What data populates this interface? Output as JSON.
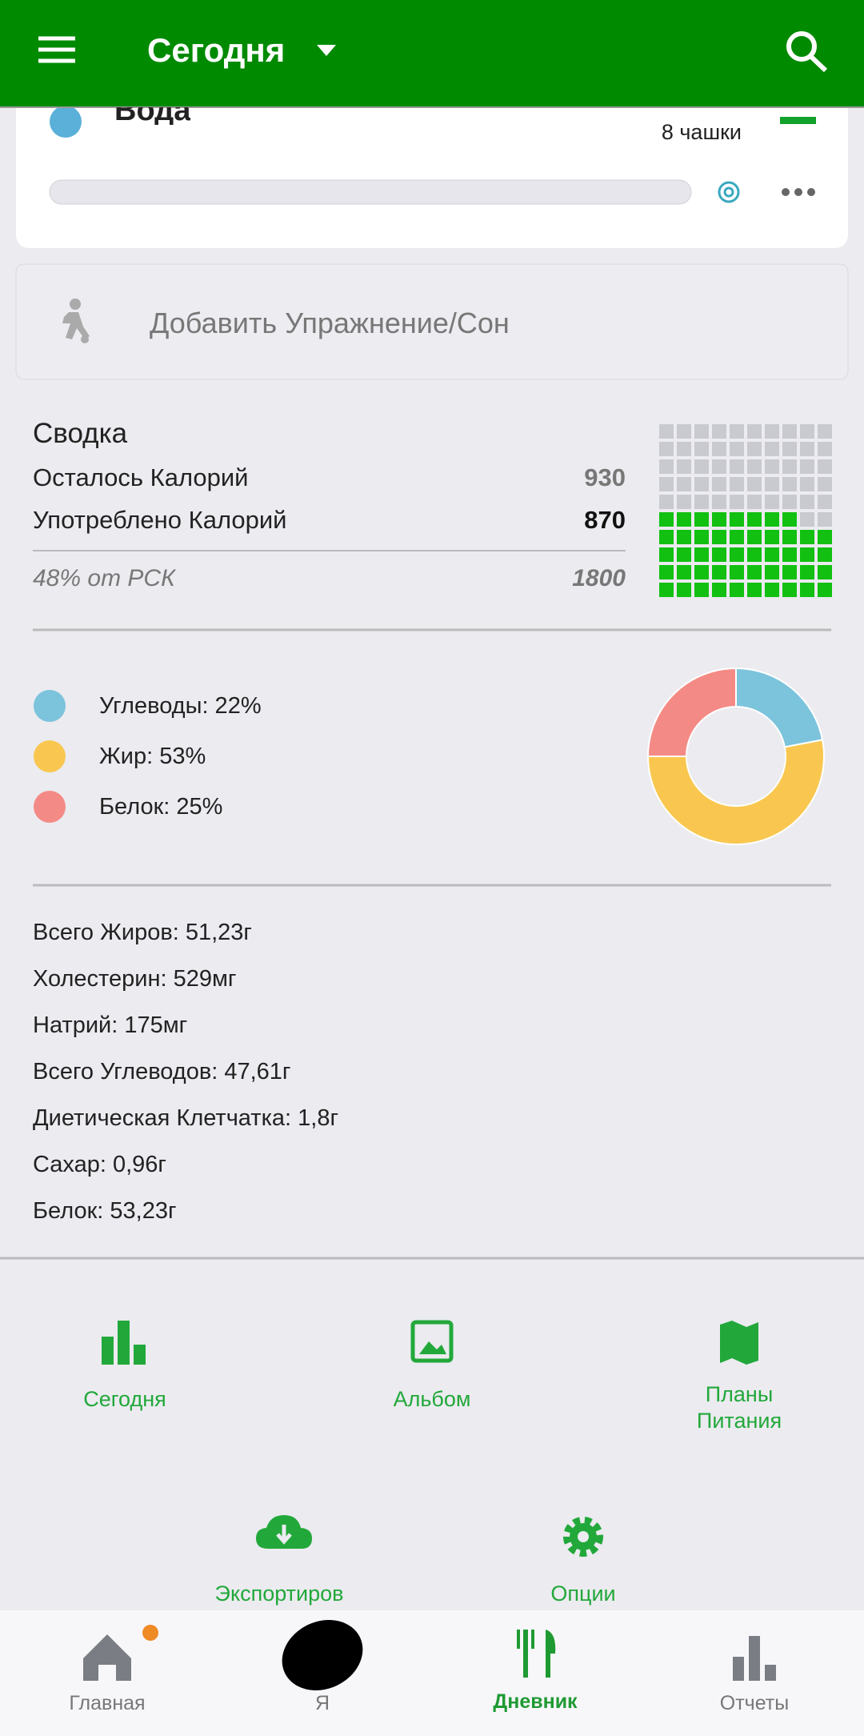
{
  "header": {
    "title": "Сегодня"
  },
  "water": {
    "title": "Вода",
    "goal": "8 чашки"
  },
  "exercise": {
    "label": "Добавить Упражнение/Сон"
  },
  "summary": {
    "title": "Сводка",
    "remaining_label": "Осталось Калорий",
    "remaining": 930,
    "consumed_label": "Употреблено Калорий",
    "consumed": 870,
    "rsk_label": "48% от РСК",
    "rsk": 1800
  },
  "nutrients": [
    "Всего Жиров: 51,23г",
    "Холестерин: 529мг",
    "Натрий: 175мг",
    "Всего Углеводов: 47,61г",
    "Диетическая Клетчатка: 1,8г",
    "Сахар: 0,96г",
    "Белок: 53,23г"
  ],
  "shortcuts": [
    "Сегодня",
    "Альбом",
    "Планы Питания"
  ],
  "actions": [
    "Экспортиров",
    "Опции"
  ],
  "nav": [
    "Главная",
    "Я",
    "Дневник",
    "Отчеты"
  ],
  "chart_data": [
    {
      "type": "waffle",
      "values": [
        48
      ],
      "color": "#12c012",
      "empty_color": "#c9c9d0"
    },
    {
      "type": "pie",
      "categories": [
        "Углеводы: 22%",
        "Жир: 53%",
        "Белок: 25%"
      ],
      "values": [
        22,
        53,
        25
      ],
      "colors": [
        "#7cc3dc",
        "#f9c74f",
        "#f48a85"
      ]
    }
  ]
}
